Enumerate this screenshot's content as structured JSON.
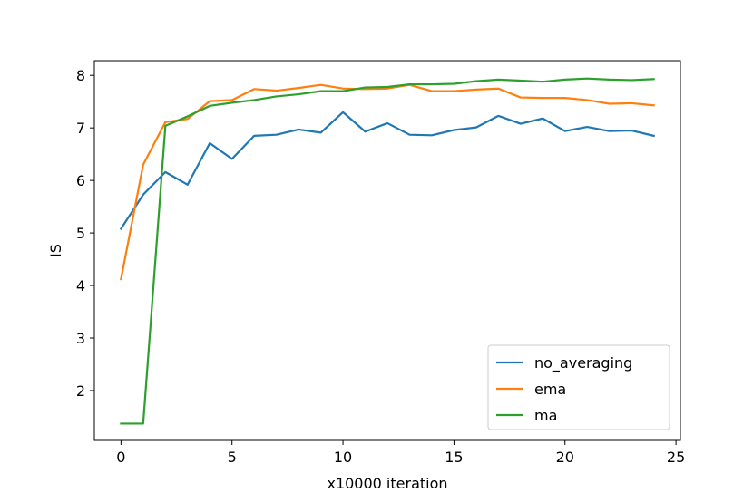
{
  "chart_data": {
    "type": "line",
    "xlabel": "x10000 iteration",
    "ylabel": "IS",
    "xlim": [
      -1.2,
      25.2
    ],
    "ylim": [
      1.05,
      8.28
    ],
    "xticks": [
      0,
      5,
      10,
      15,
      20,
      25
    ],
    "yticks": [
      2,
      3,
      4,
      5,
      6,
      7,
      8
    ],
    "x": [
      0,
      1,
      2,
      3,
      4,
      5,
      6,
      7,
      8,
      9,
      10,
      11,
      12,
      13,
      14,
      15,
      16,
      17,
      18,
      19,
      20,
      21,
      22,
      23,
      24
    ],
    "series": [
      {
        "name": "no_averaging",
        "color": "#1f77b4",
        "values": [
          5.08,
          5.73,
          6.16,
          5.92,
          6.71,
          6.41,
          6.85,
          6.87,
          6.97,
          6.91,
          7.3,
          6.93,
          7.09,
          6.87,
          6.86,
          6.96,
          7.01,
          7.23,
          7.08,
          7.18,
          6.94,
          7.02,
          6.94,
          6.95,
          6.85
        ]
      },
      {
        "name": "ema",
        "color": "#ff7f0e",
        "values": [
          4.12,
          6.3,
          7.11,
          7.17,
          7.51,
          7.53,
          7.74,
          7.71,
          7.76,
          7.82,
          7.75,
          7.74,
          7.75,
          7.82,
          7.7,
          7.7,
          7.73,
          7.75,
          7.58,
          7.57,
          7.57,
          7.53,
          7.46,
          7.47,
          7.43
        ]
      },
      {
        "name": "ma",
        "color": "#2ca02c",
        "values": [
          1.37,
          1.37,
          7.04,
          7.22,
          7.42,
          7.48,
          7.53,
          7.6,
          7.64,
          7.7,
          7.7,
          7.77,
          7.78,
          7.83,
          7.83,
          7.84,
          7.89,
          7.92,
          7.9,
          7.88,
          7.92,
          7.94,
          7.92,
          7.91,
          7.93
        ]
      }
    ],
    "grid": false,
    "legend_position": "lower-right"
  }
}
